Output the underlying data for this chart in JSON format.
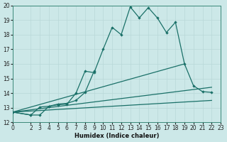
{
  "xlabel": "Humidex (Indice chaleur)",
  "bg_color": "#cce8e8",
  "grid_color": "#b8d8d8",
  "line_color": "#1a7068",
  "xlim": [
    0,
    23
  ],
  "ylim": [
    12,
    20
  ],
  "xticks": [
    0,
    2,
    3,
    4,
    5,
    6,
    7,
    8,
    9,
    10,
    11,
    12,
    13,
    14,
    15,
    16,
    17,
    18,
    19,
    20,
    21,
    22,
    23
  ],
  "yticks": [
    12,
    13,
    14,
    15,
    16,
    17,
    18,
    19,
    20
  ],
  "line1_x": [
    0,
    2,
    3,
    4,
    5,
    6,
    7,
    8,
    9,
    10,
    11,
    12,
    13,
    14,
    15,
    16,
    17,
    18,
    19,
    20,
    21,
    22
  ],
  "line1_y": [
    12.7,
    12.5,
    12.5,
    13.1,
    13.2,
    13.25,
    14.0,
    15.5,
    15.4,
    17.0,
    18.5,
    18.0,
    19.9,
    19.15,
    19.85,
    19.15,
    18.15,
    18.85,
    16.0,
    14.5,
    14.1,
    14.05
  ],
  "line2_x": [
    0,
    2,
    3,
    4,
    5,
    6,
    7,
    8,
    9
  ],
  "line2_y": [
    12.7,
    12.5,
    13.05,
    13.1,
    13.25,
    13.3,
    13.5,
    14.05,
    15.5
  ],
  "line3_x": [
    0,
    19
  ],
  "line3_y": [
    12.7,
    16.0
  ],
  "line4_x": [
    0,
    22
  ],
  "line4_y": [
    12.7,
    13.5
  ],
  "line5_x": [
    0,
    22
  ],
  "line5_y": [
    12.7,
    14.4
  ]
}
